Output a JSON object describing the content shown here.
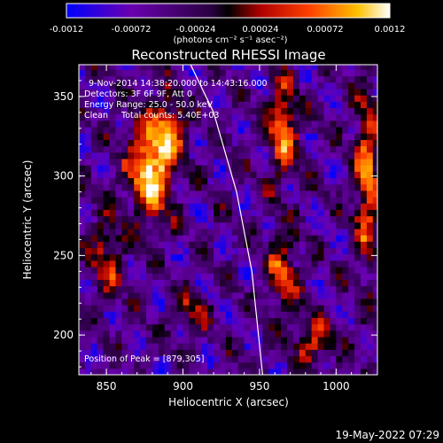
{
  "chart_data": {
    "type": "heatmap",
    "title": "Reconstructed RHESSI Image",
    "xlabel": "Heliocentric X (arcsec)",
    "ylabel": "Heliocentric Y (arcsec)",
    "xlim": [
      832,
      1027
    ],
    "ylim": [
      175,
      370
    ],
    "xticks": [
      850,
      900,
      950,
      1000
    ],
    "yticks": [
      200,
      250,
      300,
      350
    ],
    "colorbar": {
      "label": "(photons cm⁻² s⁻¹ asec⁻²)",
      "range": [
        -0.0012,
        0.0012
      ],
      "tick_labels": [
        "-0.0012",
        "-0.00072",
        "-0.00024",
        "0.00024",
        "0.00072",
        "0.0012"
      ],
      "colors": [
        "#0000ff",
        "#6a00b0",
        "#2a0040",
        "#000000",
        "#b00000",
        "#ff4000",
        "#ffc000",
        "#ffffff"
      ]
    },
    "annotations": [
      "9-Nov-2014 14:38:20.000 to 14:43:16.000",
      "Detectors: 3F 6F 9F, Att 0",
      "Energy Range: 25.0 - 50.0 keV",
      "Clean     Total counts: 5.40E+03",
      "Position of Peak = [879,305]"
    ],
    "peak": {
      "x": 879,
      "y": 305
    },
    "limb": [
      [
        905,
        370
      ],
      [
        920,
        340
      ],
      [
        935,
        290
      ],
      [
        945,
        240
      ],
      [
        952,
        175
      ]
    ],
    "sources": [
      {
        "x": 879,
        "y": 305,
        "w": 14,
        "h": 30,
        "amp": 1.0
      },
      {
        "x": 892,
        "y": 330,
        "w": 10,
        "h": 18,
        "amp": 0.6
      },
      {
        "x": 965,
        "y": 330,
        "w": 10,
        "h": 30,
        "amp": 0.7
      },
      {
        "x": 1020,
        "y": 300,
        "w": 8,
        "h": 55,
        "amp": 0.7
      },
      {
        "x": 850,
        "y": 250,
        "w": 10,
        "h": 25,
        "amp": 0.5
      },
      {
        "x": 965,
        "y": 240,
        "w": 10,
        "h": 25,
        "amp": 0.55
      },
      {
        "x": 985,
        "y": 195,
        "w": 12,
        "h": 15,
        "amp": 0.5
      },
      {
        "x": 905,
        "y": 215,
        "w": 10,
        "h": 12,
        "amp": 0.4
      }
    ]
  },
  "footer": {
    "timestamp": "19-May-2022 07:29"
  }
}
